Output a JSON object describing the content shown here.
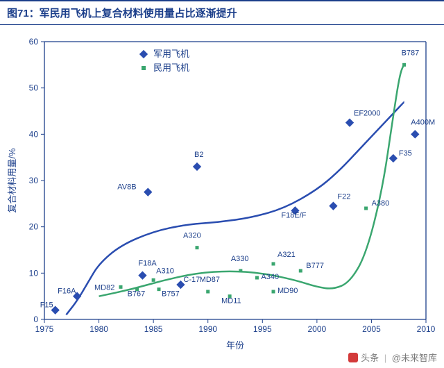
{
  "header": {
    "title": "图71：军民用飞机上复合材料使用量占比逐渐提升"
  },
  "chart": {
    "type": "scatter",
    "xlabel": "年份",
    "ylabel": "复合材料用量/%",
    "label_fontsize": 13,
    "label_color": "#1b3e8a",
    "tick_fontsize": 12,
    "tick_color": "#1b3e8a",
    "background_color": "#ffffff",
    "axis_color": "#1b3e8a",
    "xlim": [
      1975,
      2010
    ],
    "ylim": [
      0,
      60
    ],
    "xtick_step": 5,
    "ytick_step": 10,
    "x_ticks": [
      1975,
      1980,
      1985,
      1990,
      1995,
      2000,
      2005,
      2010
    ],
    "y_ticks": [
      0,
      10,
      20,
      30,
      40,
      50,
      60
    ],
    "legend": {
      "position": "top-center",
      "items": [
        {
          "label": "军用飞机",
          "marker": "diamond",
          "color": "#2a4db0",
          "size": 8
        },
        {
          "label": "民用飞机",
          "marker": "square",
          "color": "#3aa66f",
          "size": 6
        }
      ],
      "fontsize": 13,
      "text_color": "#1b3e8a"
    },
    "series": [
      {
        "name": "military",
        "label": "军用飞机",
        "marker": "diamond",
        "color": "#2a4db0",
        "marker_size": 8,
        "label_color": "#1b3e8a",
        "label_fontsize": 11,
        "points": [
          {
            "x": 1976,
            "y": 2,
            "label": "F15",
            "dx": -22,
            "dy": -4
          },
          {
            "x": 1978,
            "y": 5,
            "label": "F16A",
            "dx": -28,
            "dy": -4
          },
          {
            "x": 1984,
            "y": 9.5,
            "label": "F18A",
            "dx": -6,
            "dy": -14
          },
          {
            "x": 1984.5,
            "y": 27.5,
            "label": "AV8B",
            "dx": -44,
            "dy": -4
          },
          {
            "x": 1989,
            "y": 33,
            "label": "B2",
            "dx": -4,
            "dy": -14
          },
          {
            "x": 1987.5,
            "y": 7.5,
            "label": "C-17",
            "dx": 4,
            "dy": -4
          },
          {
            "x": 1998,
            "y": 23.5,
            "label": "F18E/F",
            "dx": -20,
            "dy": 10
          },
          {
            "x": 2001.5,
            "y": 24.5,
            "label": "F22",
            "dx": 6,
            "dy": -10
          },
          {
            "x": 2003,
            "y": 42.5,
            "label": "EF2000",
            "dx": 6,
            "dy": -10
          },
          {
            "x": 2007,
            "y": 34.8,
            "label": "F35",
            "dx": 8,
            "dy": -4
          },
          {
            "x": 2009,
            "y": 40,
            "label": "A400M",
            "dx": -6,
            "dy": -14
          }
        ]
      },
      {
        "name": "civil",
        "label": "民用飞机",
        "marker": "square",
        "color": "#3aa66f",
        "marker_size": 5,
        "label_color": "#1b3e8a",
        "label_fontsize": 11,
        "points": [
          {
            "x": 1982,
            "y": 7,
            "label": "MD82",
            "dx": -38,
            "dy": 4
          },
          {
            "x": 1983.5,
            "y": 6.5,
            "label": "B767",
            "dx": -14,
            "dy": 10
          },
          {
            "x": 1985,
            "y": 8.5,
            "label": "A310",
            "dx": 4,
            "dy": -10
          },
          {
            "x": 1985.5,
            "y": 6.5,
            "label": "B757",
            "dx": 4,
            "dy": 10
          },
          {
            "x": 1989,
            "y": 15.5,
            "label": "A320",
            "dx": -20,
            "dy": -14
          },
          {
            "x": 1990,
            "y": 6,
            "label": "MD87",
            "dx": -12,
            "dy": -14
          },
          {
            "x": 1992,
            "y": 5,
            "label": "MD11",
            "dx": -12,
            "dy": 10
          },
          {
            "x": 1993,
            "y": 10.5,
            "label": "A330",
            "dx": -14,
            "dy": -14
          },
          {
            "x": 1994.5,
            "y": 9,
            "label": "A340",
            "dx": 6,
            "dy": 2
          },
          {
            "x": 1996,
            "y": 6,
            "label": "MD90",
            "dx": 6,
            "dy": 2
          },
          {
            "x": 1996,
            "y": 12,
            "label": "A321",
            "dx": 6,
            "dy": -10
          },
          {
            "x": 1998.5,
            "y": 10.5,
            "label": "B777",
            "dx": 8,
            "dy": -4
          },
          {
            "x": 2004.5,
            "y": 24,
            "label": "A380",
            "dx": 8,
            "dy": -4
          },
          {
            "x": 2008,
            "y": 55,
            "label": "B787",
            "dx": -4,
            "dy": -14
          }
        ]
      }
    ],
    "curves": [
      {
        "name": "military_trend",
        "color": "#2a4db0",
        "stroke_width": 2.5,
        "path_points": [
          [
            1977,
            1
          ],
          [
            1978,
            4
          ],
          [
            1979,
            8
          ],
          [
            1980,
            12
          ],
          [
            1982,
            16
          ],
          [
            1985,
            19
          ],
          [
            1988,
            20.5
          ],
          [
            1991,
            21
          ],
          [
            1994,
            22
          ],
          [
            1997,
            24
          ],
          [
            2000,
            28
          ],
          [
            2002,
            32
          ],
          [
            2004,
            37
          ],
          [
            2006,
            42
          ],
          [
            2008,
            47
          ]
        ]
      },
      {
        "name": "civil_trend",
        "color": "#3aa66f",
        "stroke_width": 2.5,
        "path_points": [
          [
            1980,
            5
          ],
          [
            1983,
            6.5
          ],
          [
            1986,
            8.5
          ],
          [
            1989,
            10
          ],
          [
            1992,
            10.5
          ],
          [
            1995,
            10
          ],
          [
            1998,
            8.5
          ],
          [
            2000,
            7
          ],
          [
            2001.5,
            6.5
          ],
          [
            2003,
            8
          ],
          [
            2004.5,
            14
          ],
          [
            2006,
            28
          ],
          [
            2007,
            44
          ],
          [
            2007.6,
            53
          ],
          [
            2008,
            55.2
          ]
        ]
      }
    ]
  },
  "watermark": {
    "source": "头条",
    "author": "@未来智库"
  }
}
